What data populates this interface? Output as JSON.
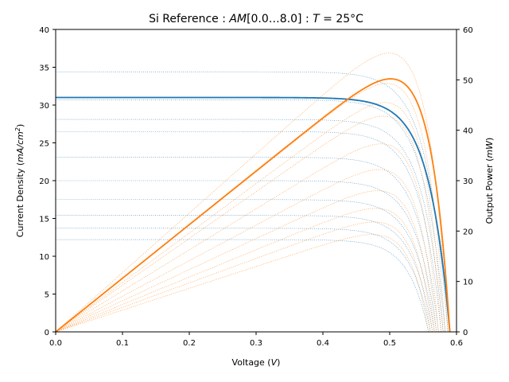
{
  "chart_data": {
    "type": "line",
    "title": {
      "prefix": "Si Reference : ",
      "am_symbol": "AM",
      "am_range": "[0.0…8.0]",
      "separator": " : ",
      "temp_symbol": "T",
      "temp_value": " = 25°C"
    },
    "xlabel": {
      "text": "Voltage (",
      "unit": "V",
      "close": ")"
    },
    "ylabel_left": {
      "text": "Current Density (",
      "unit": "mA/cm",
      "sup": "2",
      "close": ")"
    },
    "ylabel_right": {
      "text": "Output Power (",
      "unit": "mW",
      "close": ")"
    },
    "xlim": [
      0.0,
      0.6
    ],
    "ylim_left": [
      0,
      40
    ],
    "ylim_right": [
      0,
      60
    ],
    "x_ticks": [
      "0.0",
      "0.1",
      "0.2",
      "0.3",
      "0.4",
      "0.5",
      "0.6"
    ],
    "y_left_ticks": [
      "0",
      "5",
      "10",
      "15",
      "20",
      "25",
      "30",
      "35",
      "40"
    ],
    "y_right_ticks": [
      "0",
      "10",
      "20",
      "30",
      "40",
      "50",
      "60"
    ],
    "grid": false,
    "colors": {
      "current": "#1f77b4",
      "power": "#ff7f0e"
    },
    "series": [
      {
        "kind": "reference",
        "isc": 31.0,
        "voc": 0.59,
        "peak_power": 50.2,
        "peak_voltage": 0.455
      },
      {
        "kind": "family",
        "isc": 34.4,
        "voc": 0.587,
        "peak_power": 55.3,
        "peak_voltage": 0.455
      },
      {
        "kind": "family",
        "isc": 30.7,
        "voc": 0.583,
        "peak_power": 49.3,
        "peak_voltage": 0.455
      },
      {
        "kind": "family",
        "isc": 28.1,
        "voc": 0.58,
        "peak_power": 45.5,
        "peak_voltage": 0.46
      },
      {
        "kind": "family",
        "isc": 26.5,
        "voc": 0.577,
        "peak_power": 42.8,
        "peak_voltage": 0.455
      },
      {
        "kind": "family",
        "isc": 23.1,
        "voc": 0.573,
        "peak_power": 37.3,
        "peak_voltage": 0.455
      },
      {
        "kind": "family",
        "isc": 20.0,
        "voc": 0.57,
        "peak_power": 32.2,
        "peak_voltage": 0.455
      },
      {
        "kind": "family",
        "isc": 17.5,
        "voc": 0.567,
        "peak_power": 28.0,
        "peak_voltage": 0.45
      },
      {
        "kind": "family",
        "isc": 15.4,
        "voc": 0.564,
        "peak_power": 24.5,
        "peak_voltage": 0.45
      },
      {
        "kind": "family",
        "isc": 13.7,
        "voc": 0.561,
        "peak_power": 21.8,
        "peak_voltage": 0.45
      },
      {
        "kind": "family",
        "isc": 12.2,
        "voc": 0.558,
        "peak_power": 19.3,
        "peak_voltage": 0.445
      }
    ]
  }
}
